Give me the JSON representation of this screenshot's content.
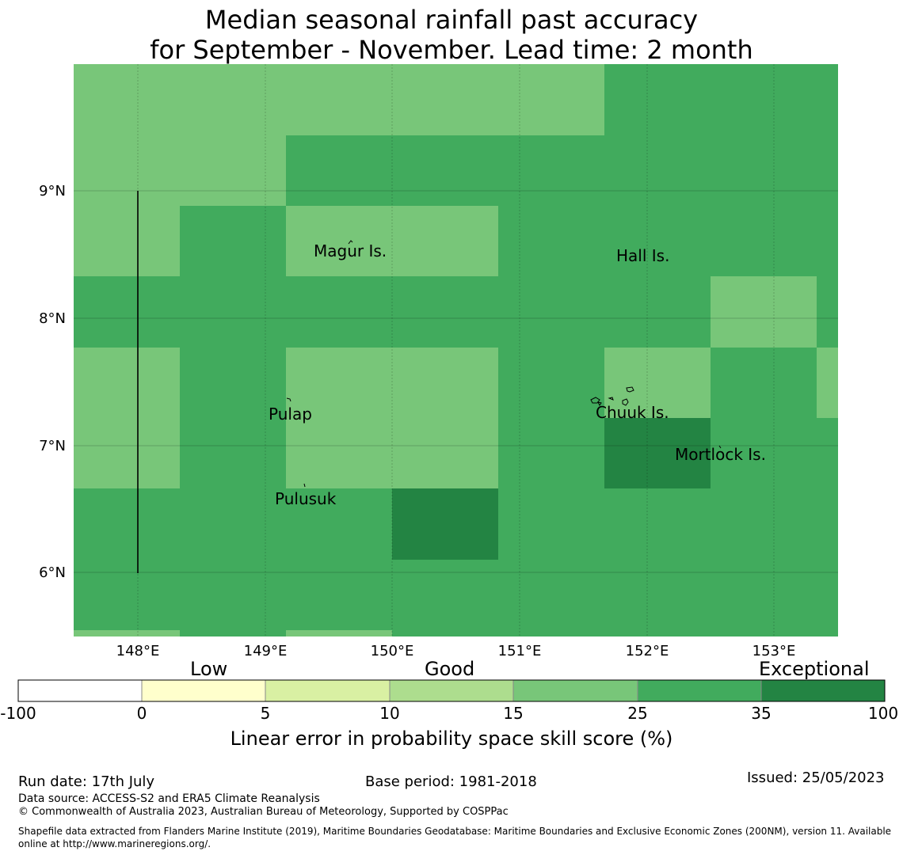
{
  "title_line1": "Median seasonal rainfall past accuracy",
  "title_line2": "for September - November. Lead time: 2 month",
  "map": {
    "lon_ticks": [
      "148°E",
      "149°E",
      "150°E",
      "151°E",
      "152°E",
      "153°E"
    ],
    "lat_ticks": [
      "9°N",
      "8°N",
      "7°N",
      "6°N"
    ],
    "places": [
      {
        "name": "Magur Is."
      },
      {
        "name": "Hall Is."
      },
      {
        "name": "Pulap"
      },
      {
        "name": "Chuuk Is."
      },
      {
        "name": "Mortlock Is."
      },
      {
        "name": "Pulusuk"
      }
    ],
    "category_colors": {
      "c15": "#78c679",
      "c25": "#41ab5d",
      "c35": "#238443"
    }
  },
  "legend": {
    "category_labels": [
      "Low",
      "Good",
      "Exceptional"
    ],
    "bins": [
      {
        "color": "#ffffff"
      },
      {
        "color": "#ffffcc"
      },
      {
        "color": "#d9f0a3"
      },
      {
        "color": "#addd8e"
      },
      {
        "color": "#78c679"
      },
      {
        "color": "#41ab5d"
      },
      {
        "color": "#238443"
      }
    ],
    "tick_labels": [
      "-100",
      "0",
      "5",
      "10",
      "15",
      "25",
      "35",
      "100"
    ],
    "xlabel": "Linear error in probability space skill score (%)"
  },
  "footer": {
    "run_date": "Run date: 17th July",
    "base_period": "Base period: 1981-2018",
    "issued": "Issued: 25/05/2023",
    "data_source": "Data source: ACCESS-S2 and ERA5 Climate Reanalysis",
    "copyright": "© Commonwealth of Australia 2023, Australian Bureau of Meteorology, Supported by COSPPac",
    "shapefile_note": "Shapefile data extracted from Flanders Marine Institute (2019), Maritime Boundaries Geodatabase: Maritime Boundaries and Exclusive Economic Zones (200NM), version 11. Available online at http://www.marineregions.org/."
  }
}
